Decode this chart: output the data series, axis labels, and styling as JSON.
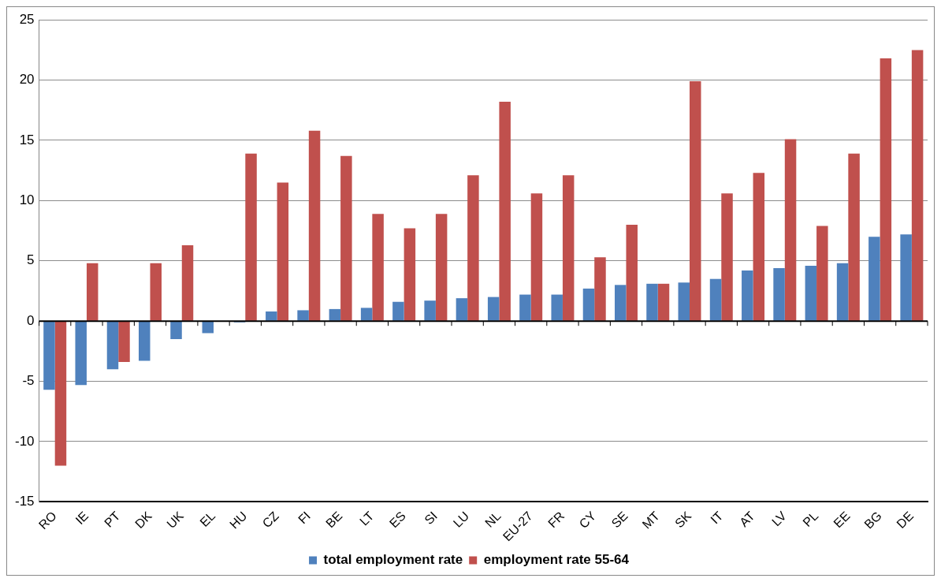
{
  "chart_data": {
    "type": "bar",
    "categories": [
      "RO",
      "IE",
      "PT",
      "DK",
      "UK",
      "EL",
      "HU",
      "CZ",
      "FI",
      "BE",
      "LT",
      "ES",
      "SI",
      "LU",
      "NL",
      "EU-27",
      "FR",
      "CY",
      "SE",
      "MT",
      "SK",
      "IT",
      "AT",
      "LV",
      "PL",
      "EE",
      "BG",
      "DE"
    ],
    "series": [
      {
        "name": "total employment rate",
        "color": "#4f81bd",
        "values": [
          -5.7,
          -5.3,
          -4.0,
          -3.3,
          -1.5,
          -1.0,
          -0.1,
          0.8,
          0.9,
          1.0,
          1.1,
          1.6,
          1.7,
          1.9,
          2.0,
          2.2,
          2.2,
          2.7,
          3.0,
          3.1,
          3.2,
          3.5,
          4.2,
          4.4,
          4.6,
          4.8,
          7.0,
          7.2
        ]
      },
      {
        "name": "employment rate 55-64",
        "color": "#c0504d",
        "values": [
          -12.0,
          4.8,
          -3.4,
          4.8,
          6.3,
          0,
          13.9,
          11.5,
          15.8,
          13.7,
          8.9,
          7.7,
          8.9,
          12.1,
          18.2,
          10.6,
          12.1,
          5.3,
          8.0,
          3.1,
          19.9,
          10.6,
          12.3,
          15.1,
          7.9,
          13.9,
          21.8,
          22.5
        ]
      }
    ],
    "ylim": [
      -15,
      25
    ],
    "yticks": [
      -15,
      -10,
      -5,
      0,
      5,
      10,
      15,
      20,
      25
    ],
    "grid": "y",
    "legend": "bottom"
  }
}
